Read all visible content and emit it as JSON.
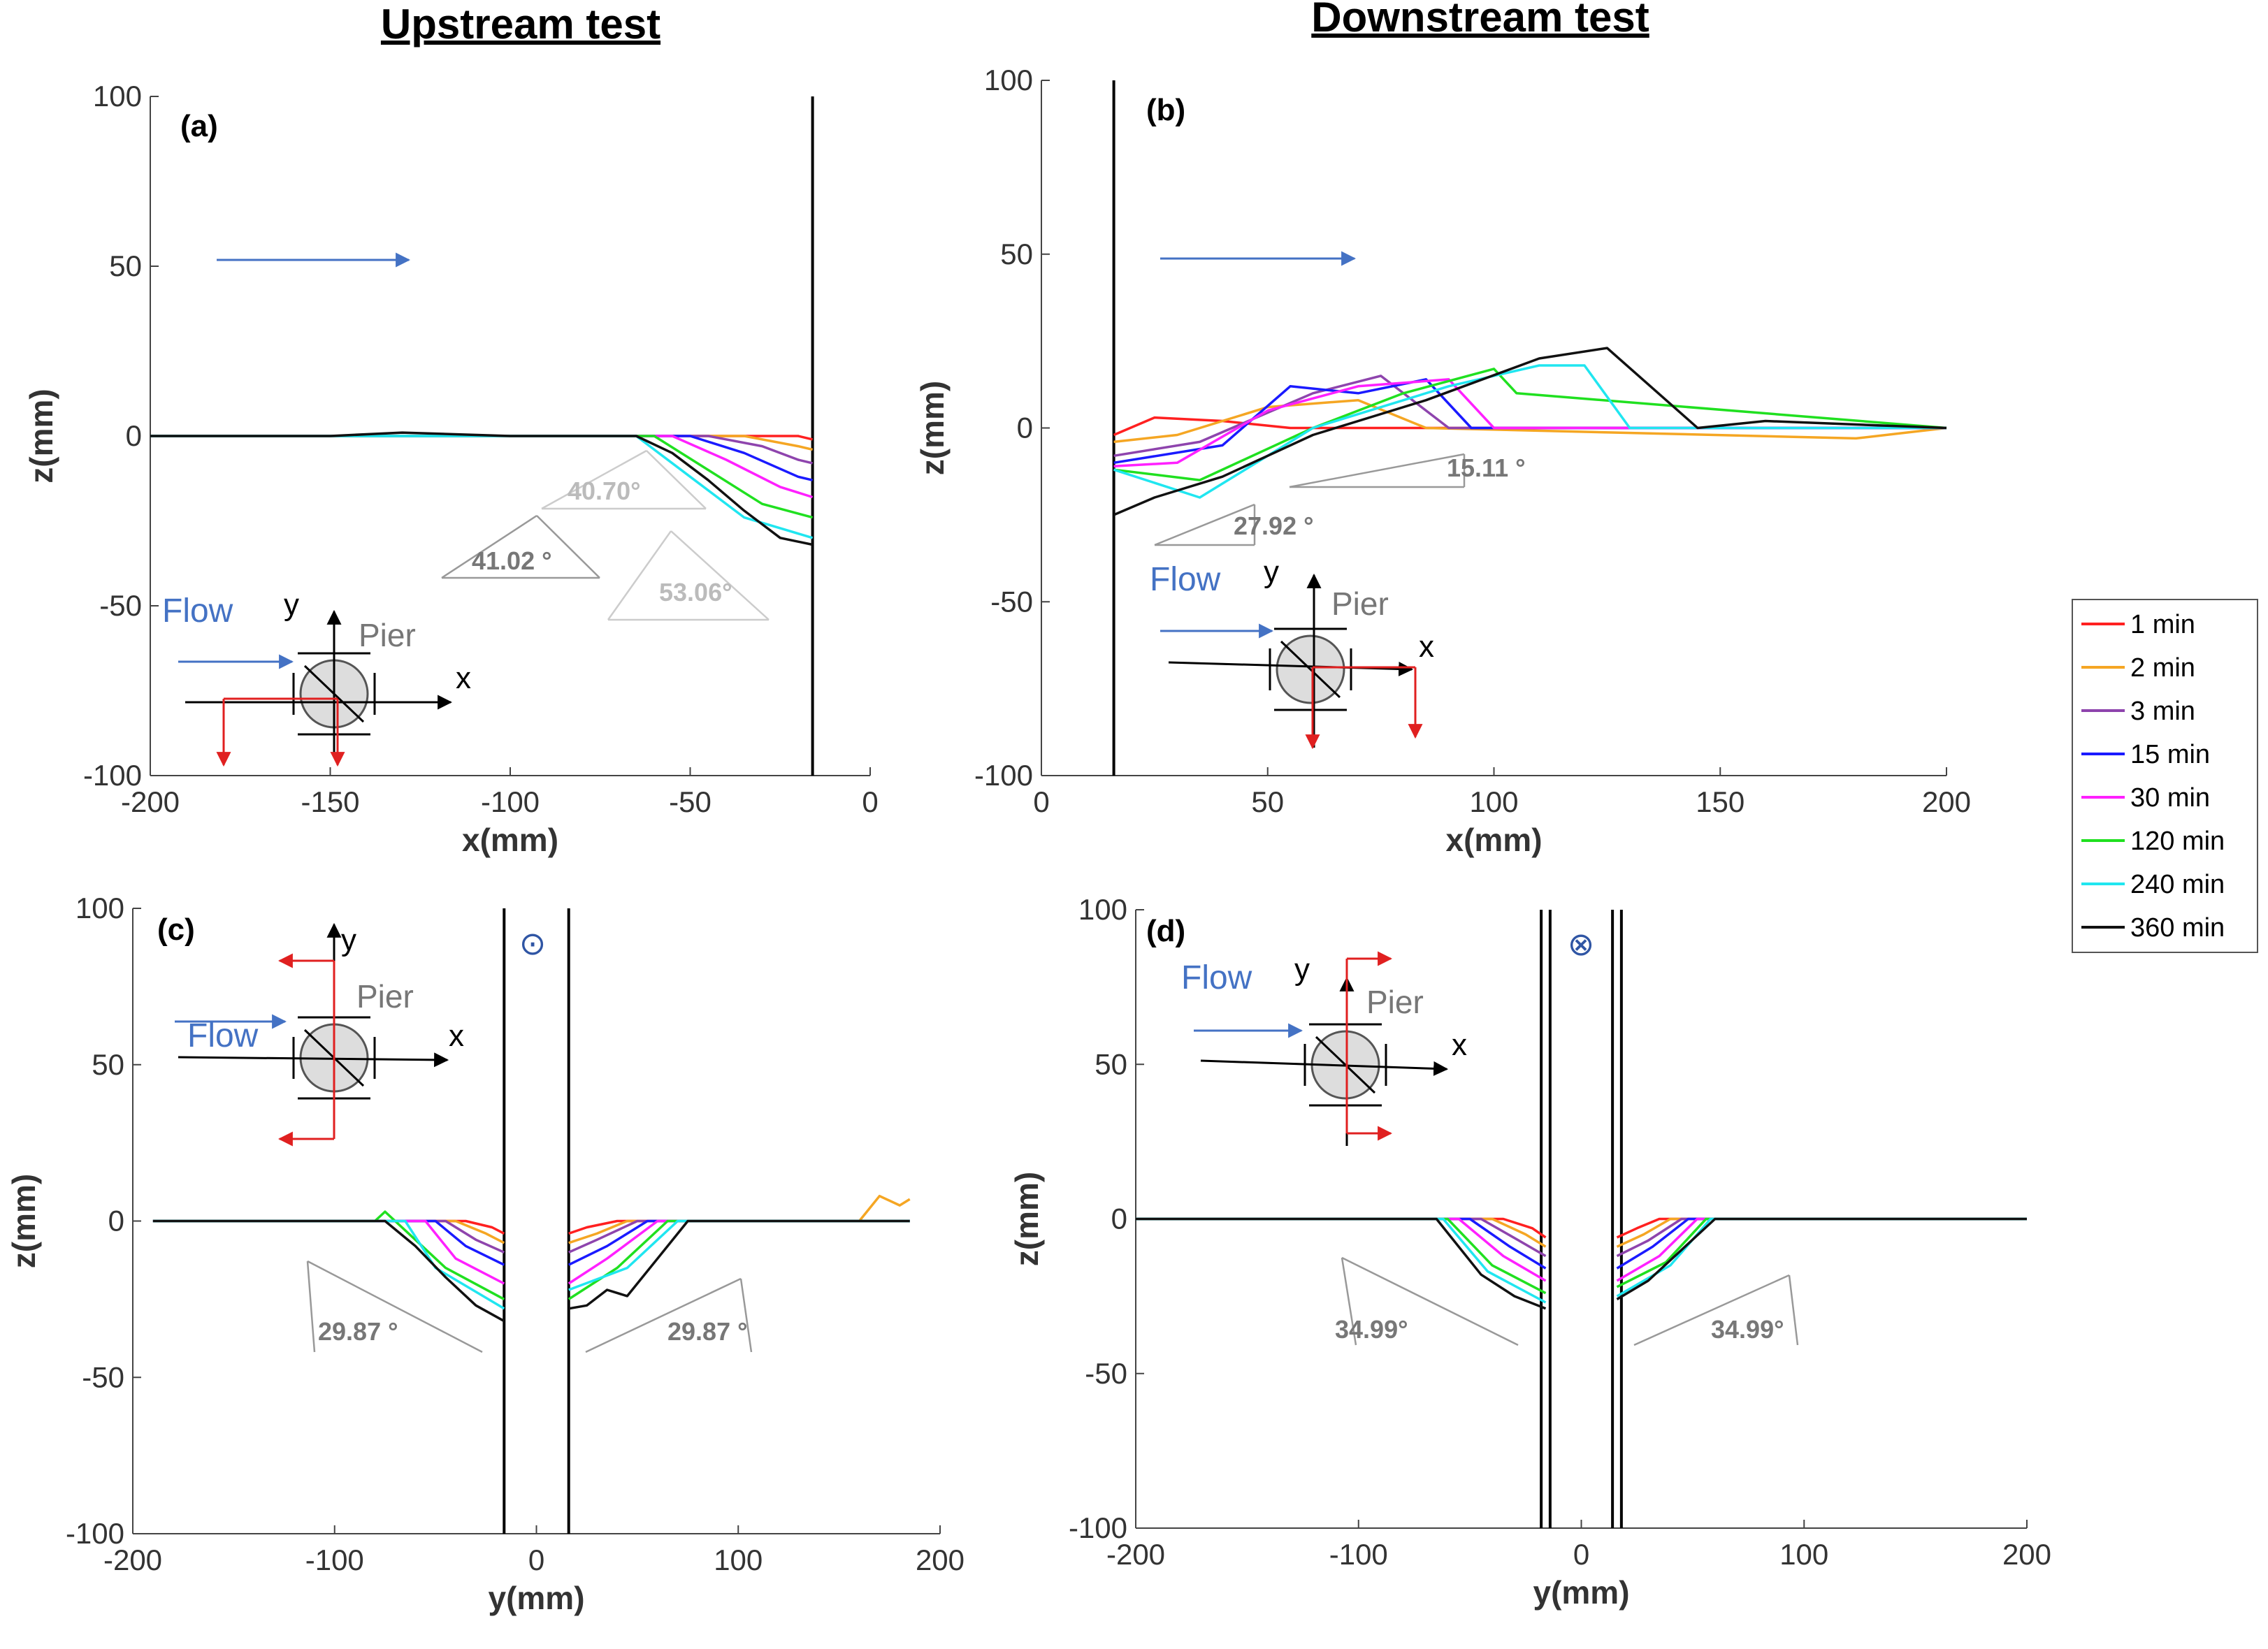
{
  "headers": {
    "upstream": "Upstream test",
    "downstream": "Downstream test"
  },
  "legend": {
    "items": [
      {
        "label": "1 min",
        "color": "#ff2020"
      },
      {
        "label": "2 min",
        "color": "#f5a623"
      },
      {
        "label": "3 min",
        "color": "#8e44ad"
      },
      {
        "label": "15 min",
        "color": "#1a1aff"
      },
      {
        "label": "30 min",
        "color": "#ff20ff"
      },
      {
        "label": "120 min",
        "color": "#20e020"
      },
      {
        "label": "240 min",
        "color": "#20e6f0"
      },
      {
        "label": "360 min",
        "color": "#111111"
      }
    ]
  },
  "colors": {
    "flow_arrow": "#4472c4",
    "axes_red": "#e02020",
    "slope_line": "#999999"
  },
  "chart_data": [
    {
      "id": "a",
      "type": "line",
      "label": "(a)",
      "xlabel": "x(mm)",
      "ylabel": "z(mm)",
      "xlim": [
        -200,
        0
      ],
      "ylim": [
        -100,
        100
      ],
      "xticks": [
        "-200",
        "-150",
        "-100",
        "-50",
        "0"
      ],
      "yticks": [
        "100",
        "50",
        "0",
        "-50",
        "-100"
      ],
      "pier_walls_x": [
        -16
      ],
      "flow_label": "Flow",
      "pier_label": "Pier",
      "axis_labels": {
        "x": "x",
        "y": "y"
      },
      "angles": [
        "40.70°",
        "41.02 °",
        "53.06°"
      ],
      "series": [
        {
          "name": "1 min",
          "x": [
            -200,
            -40,
            -25,
            -20,
            -16
          ],
          "values": [
            0,
            0,
            0,
            0,
            -1
          ]
        },
        {
          "name": "2 min",
          "x": [
            -200,
            -35,
            -20,
            -16
          ],
          "values": [
            0,
            0,
            -3,
            -4
          ]
        },
        {
          "name": "3 min",
          "x": [
            -200,
            -45,
            -30,
            -20,
            -16
          ],
          "values": [
            0,
            0,
            -3,
            -7,
            -8
          ]
        },
        {
          "name": "15 min",
          "x": [
            -200,
            -50,
            -35,
            -20,
            -16
          ],
          "values": [
            0,
            0,
            -5,
            -12,
            -13
          ]
        },
        {
          "name": "30 min",
          "x": [
            -200,
            -55,
            -40,
            -25,
            -16
          ],
          "values": [
            0,
            0,
            -7,
            -15,
            -18
          ]
        },
        {
          "name": "120 min",
          "x": [
            -200,
            -60,
            -45,
            -30,
            -16
          ],
          "values": [
            0,
            0,
            -10,
            -20,
            -24
          ]
        },
        {
          "name": "240 min",
          "x": [
            -200,
            -65,
            -50,
            -35,
            -16
          ],
          "values": [
            0,
            0,
            -12,
            -24,
            -30
          ]
        },
        {
          "name": "360 min",
          "x": [
            -200,
            -150,
            -130,
            -100,
            -65,
            -55,
            -45,
            -35,
            -25,
            -16
          ],
          "values": [
            0,
            0,
            1,
            0,
            0,
            -5,
            -13,
            -22,
            -30,
            -32
          ]
        }
      ]
    },
    {
      "id": "b",
      "type": "line",
      "label": "(b)",
      "xlabel": "x(mm)",
      "ylabel": "z(mm)",
      "xlim": [
        0,
        200
      ],
      "ylim": [
        -100,
        100
      ],
      "xticks": [
        "0",
        "50",
        "100",
        "150",
        "200"
      ],
      "yticks": [
        "100",
        "50",
        "0",
        "-50",
        "-100"
      ],
      "pier_walls_x": [
        16
      ],
      "flow_label": "Flow",
      "pier_label": "Pier",
      "axis_labels": {
        "x": "x",
        "y": "y"
      },
      "angles": [
        "15.11 °",
        "27.92 °"
      ],
      "series": [
        {
          "name": "1 min",
          "x": [
            16,
            25,
            40,
            55,
            80,
            160,
            200
          ],
          "values": [
            -2,
            3,
            2,
            0,
            0,
            0,
            0
          ]
        },
        {
          "name": "2 min",
          "x": [
            16,
            30,
            50,
            70,
            85,
            180,
            200
          ],
          "values": [
            -4,
            -2,
            6,
            8,
            0,
            -3,
            0
          ]
        },
        {
          "name": "3 min",
          "x": [
            16,
            35,
            60,
            75,
            90,
            200
          ],
          "values": [
            -8,
            -4,
            10,
            15,
            0,
            0
          ]
        },
        {
          "name": "15 min",
          "x": [
            16,
            40,
            55,
            70,
            85,
            95,
            190,
            200
          ],
          "values": [
            -10,
            -5,
            12,
            10,
            14,
            0,
            0,
            0
          ]
        },
        {
          "name": "30 min",
          "x": [
            16,
            30,
            50,
            70,
            90,
            100,
            200
          ],
          "values": [
            -11,
            -10,
            5,
            12,
            14,
            0,
            0
          ]
        },
        {
          "name": "120 min",
          "x": [
            16,
            35,
            60,
            80,
            100,
            105,
            200
          ],
          "values": [
            -12,
            -15,
            0,
            10,
            17,
            10,
            0
          ]
        },
        {
          "name": "240 min",
          "x": [
            16,
            35,
            60,
            90,
            110,
            120,
            130,
            200
          ],
          "values": [
            -12,
            -20,
            0,
            12,
            18,
            18,
            0,
            0
          ]
        },
        {
          "name": "360 min",
          "x": [
            16,
            25,
            40,
            60,
            85,
            110,
            125,
            145,
            160,
            200
          ],
          "values": [
            -25,
            -20,
            -14,
            -2,
            8,
            20,
            23,
            0,
            2,
            0
          ]
        }
      ]
    },
    {
      "id": "c",
      "type": "line",
      "label": "(c)",
      "xlabel": "y(mm)",
      "ylabel": "z(mm)",
      "xlim": [
        -200,
        200
      ],
      "ylim": [
        -100,
        100
      ],
      "xticks": [
        "-200",
        "-100",
        "0",
        "100",
        "200"
      ],
      "yticks": [
        "100",
        "50",
        "0",
        "-50",
        "-100"
      ],
      "pier_walls_x": [
        -16,
        16
      ],
      "symbol": "⊙",
      "flow_label": "Flow",
      "pier_label": "Pier",
      "axis_labels": {
        "x": "x",
        "y": "y"
      },
      "angles": [
        "29.87 °",
        "29.87 °"
      ],
      "series": [
        {
          "name": "1 min",
          "x": [
            -190,
            -35,
            -22,
            -16,
            null,
            16,
            25,
            40,
            185
          ],
          "values": [
            0,
            0,
            -2,
            -4,
            null,
            -4,
            -2,
            0,
            0
          ]
        },
        {
          "name": "2 min",
          "x": [
            -190,
            -40,
            -25,
            -16,
            null,
            16,
            30,
            45,
            160,
            170,
            180,
            185
          ],
          "values": [
            0,
            0,
            -4,
            -7,
            null,
            -7,
            -4,
            0,
            0,
            8,
            5,
            7
          ]
        },
        {
          "name": "3 min",
          "x": [
            -190,
            -45,
            -30,
            -16,
            null,
            16,
            30,
            50,
            185
          ],
          "values": [
            0,
            0,
            -6,
            -10,
            null,
            -10,
            -6,
            0,
            0
          ]
        },
        {
          "name": "15 min",
          "x": [
            -190,
            -50,
            -35,
            -16,
            null,
            16,
            35,
            55,
            185
          ],
          "values": [
            0,
            0,
            -8,
            -14,
            null,
            -14,
            -8,
            0,
            0
          ]
        },
        {
          "name": "30 min",
          "x": [
            -190,
            -55,
            -40,
            -16,
            null,
            16,
            35,
            60,
            185
          ],
          "values": [
            0,
            0,
            -12,
            -20,
            null,
            -20,
            -12,
            0,
            0
          ]
        },
        {
          "name": "120 min",
          "x": [
            -190,
            -80,
            -75,
            -60,
            -45,
            -16,
            null,
            16,
            40,
            65,
            185
          ],
          "values": [
            0,
            0,
            3,
            -6,
            -15,
            -25,
            null,
            -25,
            -15,
            0,
            0
          ]
        },
        {
          "name": "240 min",
          "x": [
            -190,
            -65,
            -50,
            -16,
            null,
            16,
            45,
            70,
            185
          ],
          "values": [
            0,
            0,
            -15,
            -28,
            null,
            -22,
            -15,
            0,
            0
          ]
        },
        {
          "name": "360 min",
          "x": [
            -190,
            -75,
            -60,
            -45,
            -30,
            -16,
            null,
            16,
            25,
            35,
            45,
            60,
            75,
            185
          ],
          "values": [
            0,
            0,
            -8,
            -18,
            -27,
            -32,
            null,
            -28,
            -27,
            -22,
            -24,
            -12,
            0,
            0
          ]
        }
      ]
    },
    {
      "id": "d",
      "type": "line",
      "label": "(d)",
      "xlabel": "y(mm)",
      "ylabel": "z(mm)",
      "xlim": [
        -200,
        200
      ],
      "ylim": [
        -100,
        100
      ],
      "xticks": [
        "-200",
        "-100",
        "0",
        "100",
        "200"
      ],
      "yticks": [
        "100",
        "50",
        "0",
        "-50",
        "-100"
      ],
      "pier_walls_x": [
        -18,
        -14,
        14,
        18
      ],
      "symbol": "⊗",
      "flow_label": "Flow",
      "pier_label": "Pier",
      "axis_labels": {
        "x": "x",
        "y": "y"
      },
      "angles": [
        "34.99°",
        "34.99°"
      ],
      "series": [
        {
          "name": "1 min",
          "x": [
            -200,
            -35,
            -22,
            -16,
            null,
            16,
            25,
            35,
            200
          ],
          "values": [
            0,
            0,
            -3,
            -6,
            null,
            -6,
            -3,
            0,
            0
          ]
        },
        {
          "name": "2 min",
          "x": [
            -200,
            -40,
            -25,
            -16,
            null,
            16,
            28,
            40,
            200
          ],
          "values": [
            0,
            0,
            -5,
            -9,
            null,
            -9,
            -5,
            0,
            0
          ]
        },
        {
          "name": "3 min",
          "x": [
            -200,
            -45,
            -28,
            -16,
            null,
            16,
            30,
            45,
            200
          ],
          "values": [
            0,
            0,
            -7,
            -12,
            null,
            -12,
            -7,
            0,
            0
          ]
        },
        {
          "name": "15 min",
          "x": [
            -200,
            -50,
            -32,
            -16,
            null,
            16,
            32,
            48,
            200
          ],
          "values": [
            0,
            0,
            -9,
            -16,
            null,
            -16,
            -9,
            0,
            0
          ]
        },
        {
          "name": "30 min",
          "x": [
            -200,
            -55,
            -35,
            -16,
            null,
            16,
            35,
            52,
            200
          ],
          "values": [
            0,
            0,
            -12,
            -20,
            null,
            -20,
            -12,
            0,
            0
          ]
        },
        {
          "name": "120 min",
          "x": [
            -200,
            -60,
            -40,
            -16,
            null,
            16,
            38,
            56,
            200
          ],
          "values": [
            0,
            0,
            -15,
            -24,
            null,
            -22,
            -14,
            0,
            0
          ]
        },
        {
          "name": "240 min",
          "x": [
            -200,
            -62,
            -42,
            -16,
            null,
            16,
            40,
            58,
            200
          ],
          "values": [
            0,
            0,
            -17,
            -27,
            null,
            -25,
            -15,
            0,
            0
          ]
        },
        {
          "name": "360 min",
          "x": [
            -200,
            -65,
            -45,
            -30,
            -16,
            null,
            16,
            30,
            45,
            60,
            200
          ],
          "values": [
            0,
            0,
            -18,
            -25,
            -29,
            null,
            -26,
            -20,
            -10,
            0,
            0
          ]
        }
      ]
    }
  ]
}
